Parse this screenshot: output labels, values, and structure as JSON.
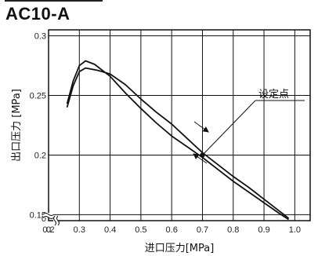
{
  "chart_data": {
    "type": "line",
    "title": "AC10-A",
    "xlabel": "进口压力[MPa]",
    "ylabel": "出口压力 [MPa]",
    "x_ticks": [
      "0",
      "0.2",
      "0.3",
      "0.4",
      "0.5",
      "0.6",
      "0.7",
      "0.8",
      "0.9",
      "1.0"
    ],
    "y_ticks": [
      "0",
      "0.15",
      "0.2",
      "0.25",
      "0.3"
    ],
    "xlim": [
      0.2,
      1.05
    ],
    "ylim": [
      0.145,
      0.305
    ],
    "axis_break": true,
    "grid": true,
    "series": [
      {
        "values": [
          {
            "x": 0.26,
            "y": 0.243
          },
          {
            "x": 0.28,
            "y": 0.262
          },
          {
            "x": 0.3,
            "y": 0.275
          },
          {
            "x": 0.32,
            "y": 0.279
          },
          {
            "x": 0.35,
            "y": 0.276
          },
          {
            "x": 0.4,
            "y": 0.266
          },
          {
            "x": 0.45,
            "y": 0.252
          },
          {
            "x": 0.5,
            "y": 0.239
          },
          {
            "x": 0.55,
            "y": 0.227
          },
          {
            "x": 0.6,
            "y": 0.216
          },
          {
            "x": 0.65,
            "y": 0.207
          },
          {
            "x": 0.7,
            "y": 0.198
          },
          {
            "x": 0.75,
            "y": 0.188
          },
          {
            "x": 0.8,
            "y": 0.178
          },
          {
            "x": 0.85,
            "y": 0.169
          },
          {
            "x": 0.9,
            "y": 0.16
          },
          {
            "x": 0.95,
            "y": 0.151
          },
          {
            "x": 0.98,
            "y": 0.146
          }
        ]
      },
      {
        "values": [
          {
            "x": 0.26,
            "y": 0.24
          },
          {
            "x": 0.28,
            "y": 0.258
          },
          {
            "x": 0.3,
            "y": 0.27
          },
          {
            "x": 0.32,
            "y": 0.273
          },
          {
            "x": 0.36,
            "y": 0.271
          },
          {
            "x": 0.4,
            "y": 0.268
          },
          {
            "x": 0.45,
            "y": 0.259
          },
          {
            "x": 0.5,
            "y": 0.247
          },
          {
            "x": 0.55,
            "y": 0.236
          },
          {
            "x": 0.6,
            "y": 0.226
          },
          {
            "x": 0.65,
            "y": 0.214
          },
          {
            "x": 0.7,
            "y": 0.202
          },
          {
            "x": 0.75,
            "y": 0.192
          },
          {
            "x": 0.8,
            "y": 0.182
          },
          {
            "x": 0.85,
            "y": 0.173
          },
          {
            "x": 0.9,
            "y": 0.163
          },
          {
            "x": 0.95,
            "y": 0.153
          },
          {
            "x": 0.98,
            "y": 0.147
          }
        ]
      }
    ],
    "annotation": {
      "text": "设定点",
      "x": 0.7,
      "y": 0.2
    }
  },
  "colors": {
    "line": "#111111",
    "grid": "#111111",
    "background": "#ffffff"
  }
}
